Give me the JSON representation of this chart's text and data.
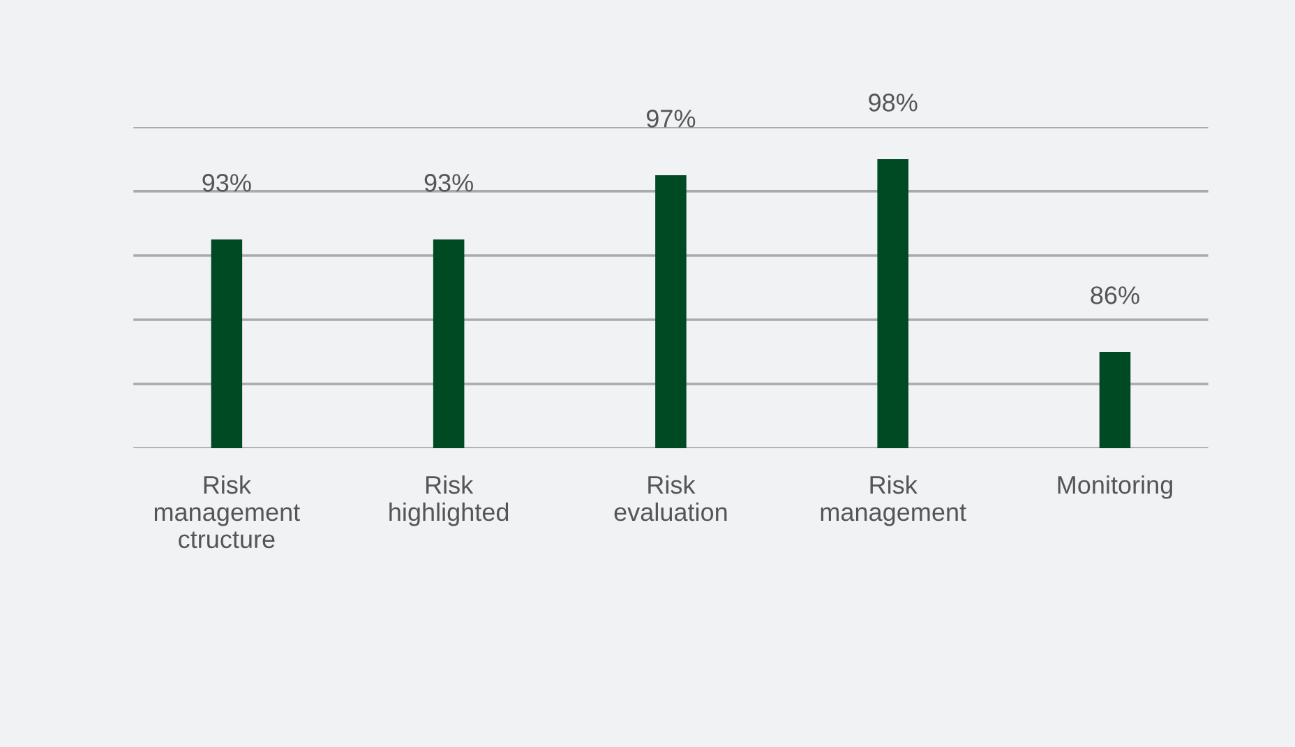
{
  "chart_data": {
    "type": "bar",
    "categories": [
      "Risk\nmanagement\nctructure",
      "Risk\nhighlighted",
      "Risk\nevaluation",
      "Risk\nmanagement",
      "Monitoring"
    ],
    "values": [
      93,
      93,
      97,
      98,
      86
    ],
    "value_labels": [
      "93%",
      "93%",
      "97%",
      "98%",
      "86%"
    ],
    "color": "#004a23",
    "ylim": [
      80,
      100
    ],
    "yticks": [
      {
        "value": 80,
        "label": null
      },
      {
        "value": 84,
        "label": null
      },
      {
        "value": 88,
        "label": null
      },
      {
        "value": 92,
        "label": null
      },
      {
        "value": 96,
        "label": null
      },
      {
        "value": 100,
        "label": null
      }
    ],
    "grid": "y",
    "tick_labels": "x",
    "legend": false
  }
}
